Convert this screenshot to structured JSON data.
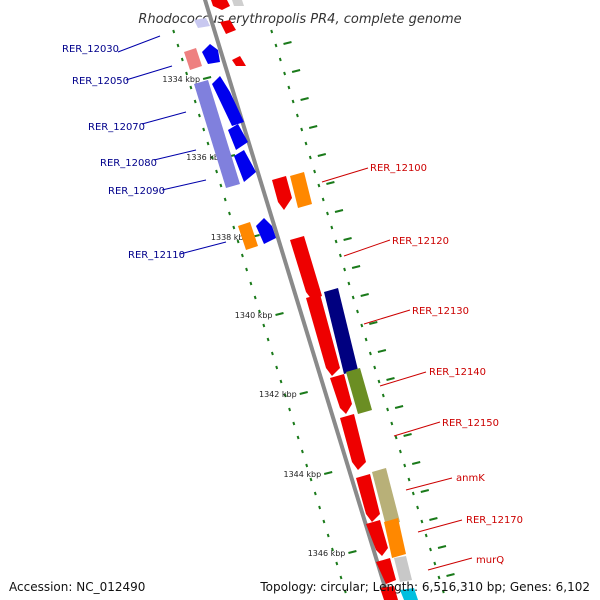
{
  "title": "Rhodococcus erythropolis PR4, complete genome",
  "footer": {
    "accession": "Accession: NC_012490",
    "summary": "Topology: circular; Length: 6,516,310 bp; Genes: 6,102"
  },
  "colors": {
    "left_label": "#00008B",
    "right_label": "#CC0000",
    "backbone": "#888888",
    "tick": "#1a7a1a"
  },
  "scale_labels": [
    "1334 kbp",
    "1336 kbp",
    "1338 kbp",
    "1340 kbp",
    "1342 kbp",
    "1344 kbp",
    "1346 kbp"
  ],
  "left_genes": [
    {
      "name": "RER_12030"
    },
    {
      "name": "RER_12050"
    },
    {
      "name": "RER_12070"
    },
    {
      "name": "RER_12080"
    },
    {
      "name": "RER_12090"
    },
    {
      "name": "RER_12110"
    }
  ],
  "right_genes": [
    {
      "name": "RER_12100"
    },
    {
      "name": "RER_12120"
    },
    {
      "name": "RER_12130"
    },
    {
      "name": "RER_12140"
    },
    {
      "name": "RER_12150"
    },
    {
      "name": "anmK"
    },
    {
      "name": "RER_12170"
    },
    {
      "name": "murQ"
    }
  ]
}
